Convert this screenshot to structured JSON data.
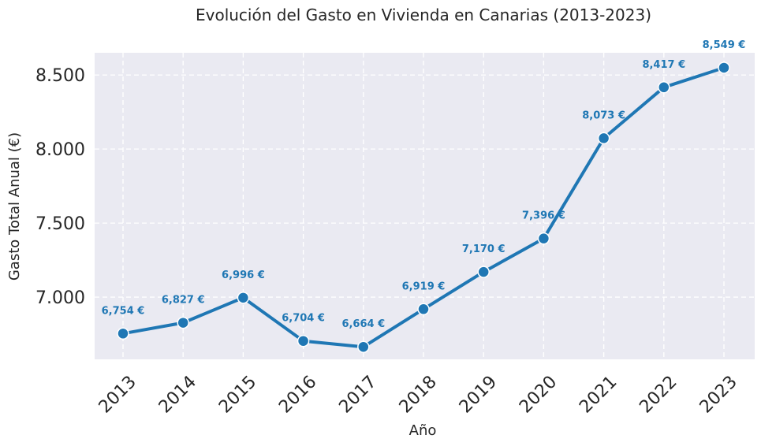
{
  "chart_data": {
    "type": "line",
    "title": "Evolución del Gasto en Vivienda en Canarias (2013-2023)",
    "xlabel": "Año",
    "ylabel": "Gasto Total Anual (€)",
    "categories": [
      "2013",
      "2014",
      "2015",
      "2016",
      "2017",
      "2018",
      "2019",
      "2020",
      "2021",
      "2022",
      "2023"
    ],
    "values": [
      6754,
      6827,
      6996,
      6704,
      6664,
      6919,
      7170,
      7396,
      8073,
      8417,
      8549
    ],
    "data_labels": [
      "6,754 €",
      "6,827 €",
      "6,996 €",
      "6,704 €",
      "6,664 €",
      "6,919 €",
      "7,170 €",
      "7,396 €",
      "8,073 €",
      "8,417 €",
      "8,549 €"
    ],
    "yticks": [
      7000,
      7500,
      8000,
      8500
    ],
    "ytick_labels": [
      "7.000",
      "7.500",
      "8.000",
      "8.500"
    ],
    "ylim": [
      6580,
      8650
    ],
    "grid": true,
    "grid_style": "dashed",
    "legend": "none",
    "colors": {
      "line": "#1f77b4",
      "marker_stroke": "#ffffff",
      "label": "#1f77b4",
      "plot_background": "#eaeaf2",
      "grid": "#ffffff"
    }
  }
}
